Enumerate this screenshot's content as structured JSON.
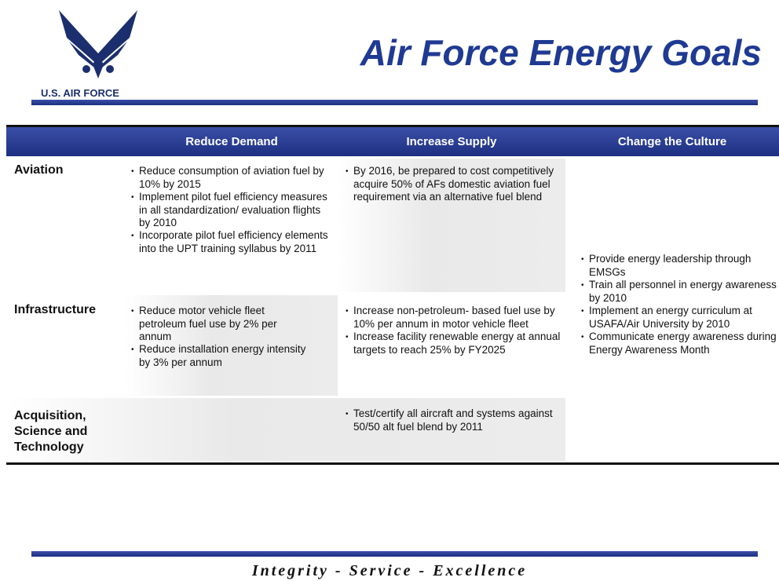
{
  "header": {
    "title": "Air Force Energy Goals",
    "org": "U.S. AIR FORCE"
  },
  "table": {
    "columns": [
      "Reduce Demand",
      "Increase Supply",
      "Change the Culture"
    ],
    "rows": [
      {
        "label": "Aviation",
        "reduce_demand": [
          "Reduce consumption of aviation fuel by 10% by 2015",
          "Implement pilot fuel efficiency measures in all standardization/ evaluation flights by 2010",
          "Incorporate pilot fuel efficiency elements into the UPT training syllabus by 2011"
        ],
        "increase_supply": [
          "By 2016, be prepared to cost competitively acquire 50% of AFs domestic aviation fuel requirement via an alternative fuel blend"
        ]
      },
      {
        "label": "Infrastructure",
        "reduce_demand": [
          "Reduce motor vehicle fleet petroleum fuel use by 2% per annum",
          "Reduce installation energy intensity by 3% per annum"
        ],
        "increase_supply": [
          "Increase non-petroleum- based fuel use by 10% per annum in motor vehicle fleet",
          "Increase facility renewable energy at annual targets to reach 25% by FY2025"
        ]
      },
      {
        "label": "Acquisition, Science and Technology",
        "reduce_demand": [],
        "increase_supply": [
          "Test/certify all aircraft and systems against 50/50 alt fuel blend by 2011"
        ]
      }
    ],
    "culture": [
      "Provide energy leadership through EMSGs",
      "Train all personnel in energy awareness by 2010",
      "Implement an energy curriculum at USAFA/Air University by 2010",
      "Communicate energy awareness during Energy Awareness Month"
    ]
  },
  "footer": "Integrity - Service - Excellence"
}
